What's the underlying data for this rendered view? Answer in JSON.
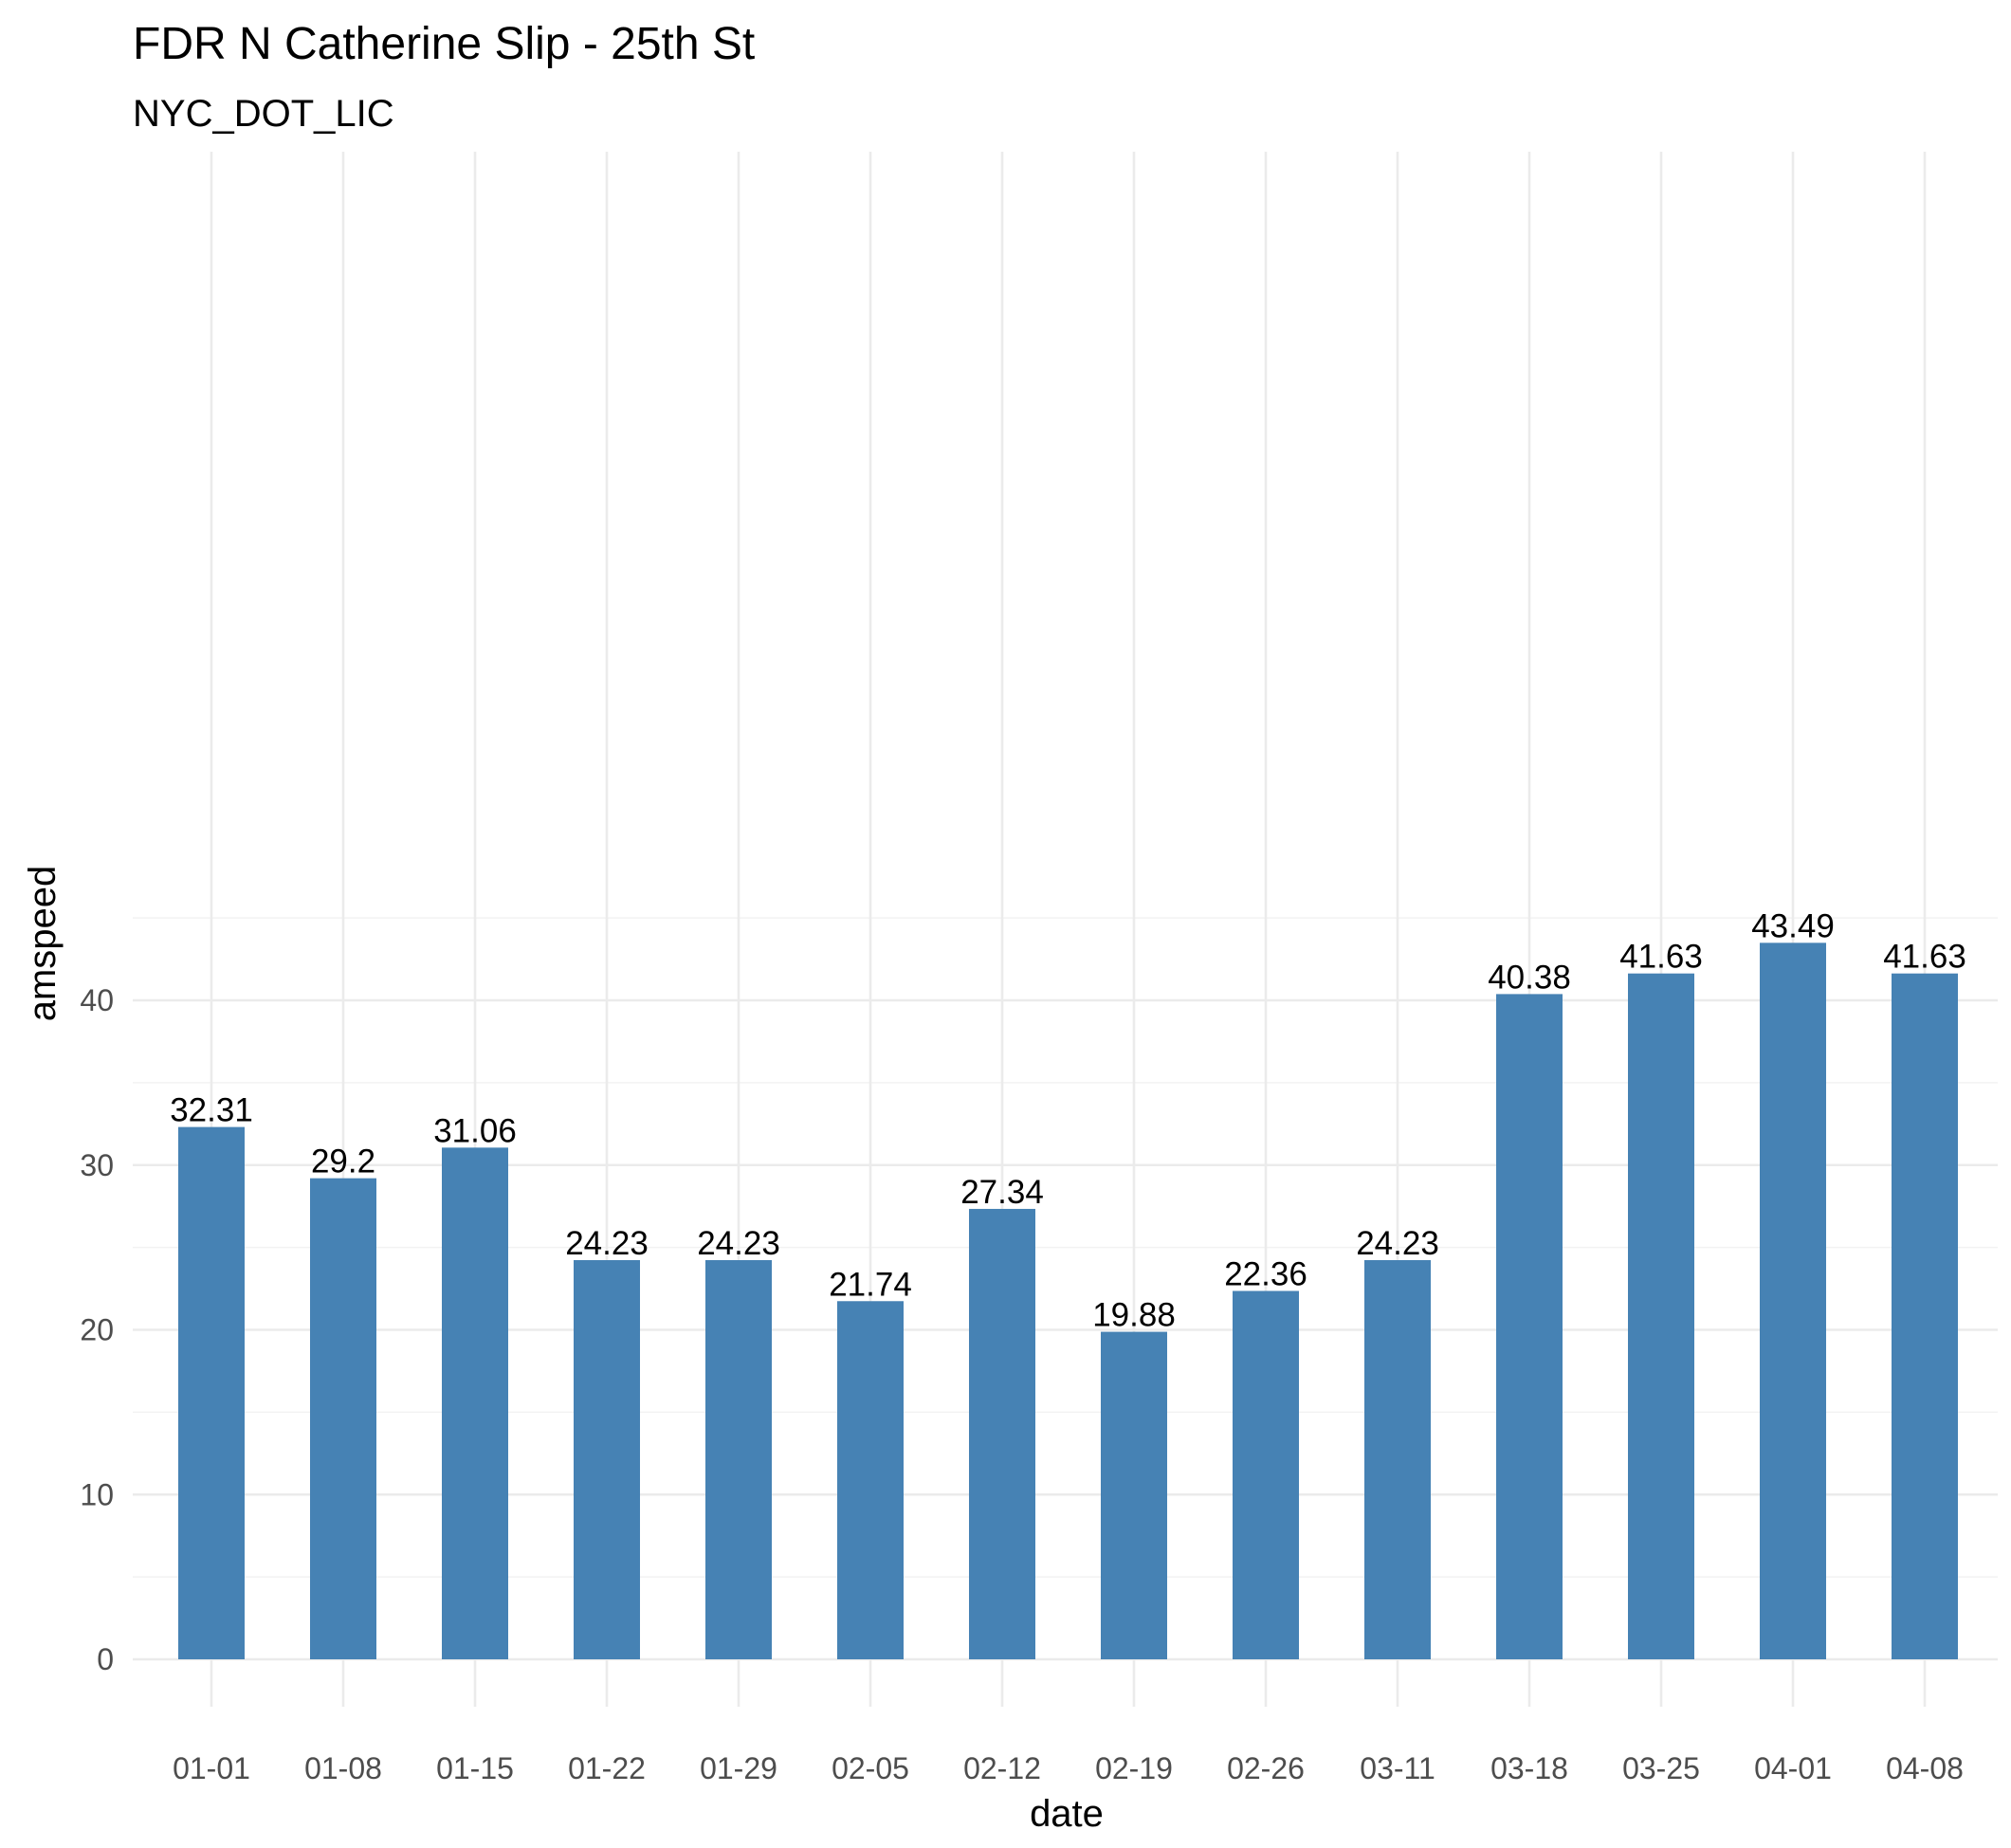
{
  "chart_data": {
    "type": "bar",
    "title": "FDR N Catherine Slip - 25th St",
    "subtitle": "NYC_DOT_LIC",
    "xlabel": "date",
    "ylabel": "amspeed",
    "categories": [
      "01-01",
      "01-08",
      "01-15",
      "01-22",
      "01-29",
      "02-05",
      "02-12",
      "02-19",
      "02-26",
      "03-11",
      "03-18",
      "03-25",
      "04-01",
      "04-08"
    ],
    "values": [
      32.31,
      29.2,
      31.06,
      24.23,
      24.23,
      21.74,
      27.34,
      19.88,
      22.36,
      24.23,
      40.38,
      41.63,
      43.49,
      41.63
    ],
    "data_labels": [
      "32.31",
      "29.2",
      "31.06",
      "24.23",
      "24.23",
      "21.74",
      "27.34",
      "19.88",
      "22.36",
      "24.23",
      "40.38",
      "41.63",
      "43.49",
      "41.63"
    ],
    "ylim": [
      0,
      45
    ],
    "y_ticks": [
      0,
      10,
      20,
      30,
      40
    ],
    "y_minor_ticks": [
      5,
      15,
      25,
      35,
      45
    ],
    "grid": true,
    "bar_color": "#4682b4"
  }
}
